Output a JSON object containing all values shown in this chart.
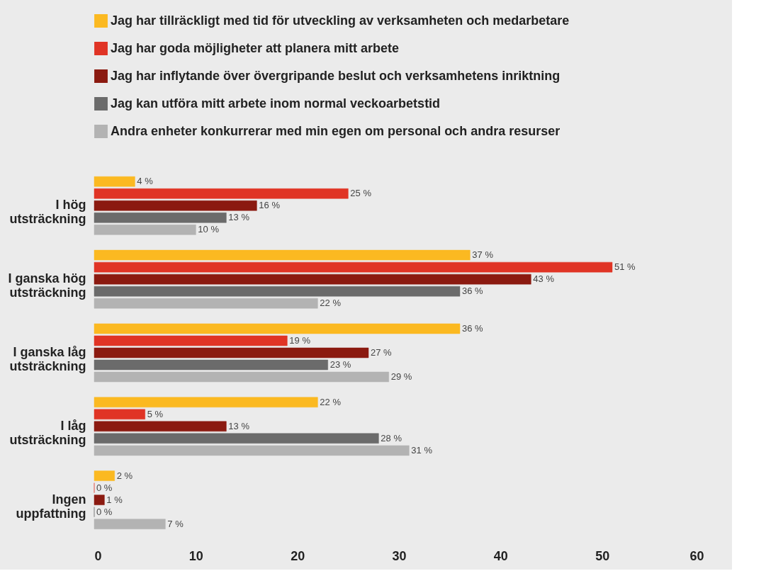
{
  "chart_data": {
    "type": "bar",
    "orientation": "horizontal",
    "legend": "top",
    "categories": [
      "I hög utsträckning",
      "I ganska hög utsträckning",
      "I ganska låg utsträckning",
      "I låg utsträckning",
      "Ingen uppfattning"
    ],
    "series": [
      {
        "name": "Jag har tillräckligt med tid för utveckling av verksamheten och medarbetare",
        "color": "#fbb921",
        "values": [
          4,
          37,
          36,
          22,
          2
        ],
        "value_labels": [
          "4 %",
          "37 %",
          "36 %",
          "22 %",
          "2 %"
        ]
      },
      {
        "name": "Jag har goda möjligheter att planera mitt arbete",
        "color": "#e03425",
        "values": [
          25,
          51,
          19,
          5,
          0
        ],
        "value_labels": [
          "25 %",
          "51 %",
          "19 %",
          "5 %",
          "0 %"
        ]
      },
      {
        "name": "Jag har inflytande över övergripande beslut och verksamhetens inriktning",
        "color": "#8b1a10",
        "values": [
          16,
          43,
          27,
          13,
          1
        ],
        "value_labels": [
          "16 %",
          "43 %",
          "27 %",
          "13 %",
          "1 %"
        ]
      },
      {
        "name": "Jag kan utföra mitt arbete inom normal veckoarbetstid",
        "color": "#6b6b6b",
        "values": [
          13,
          36,
          23,
          28,
          0
        ],
        "value_labels": [
          "13 %",
          "36 %",
          "23 %",
          "28 %",
          "0 %"
        ]
      },
      {
        "name": "Andra enheter konkurrerar med min egen om personal och andra resurser",
        "color": "#b3b3b3",
        "values": [
          10,
          22,
          29,
          31,
          7
        ],
        "value_labels": [
          "10 %",
          "22 %",
          "29 %",
          "31 %",
          "7 %"
        ]
      }
    ],
    "xlim": [
      0,
      60
    ],
    "xticks": [
      0,
      10,
      20,
      30,
      40,
      50,
      60
    ]
  }
}
